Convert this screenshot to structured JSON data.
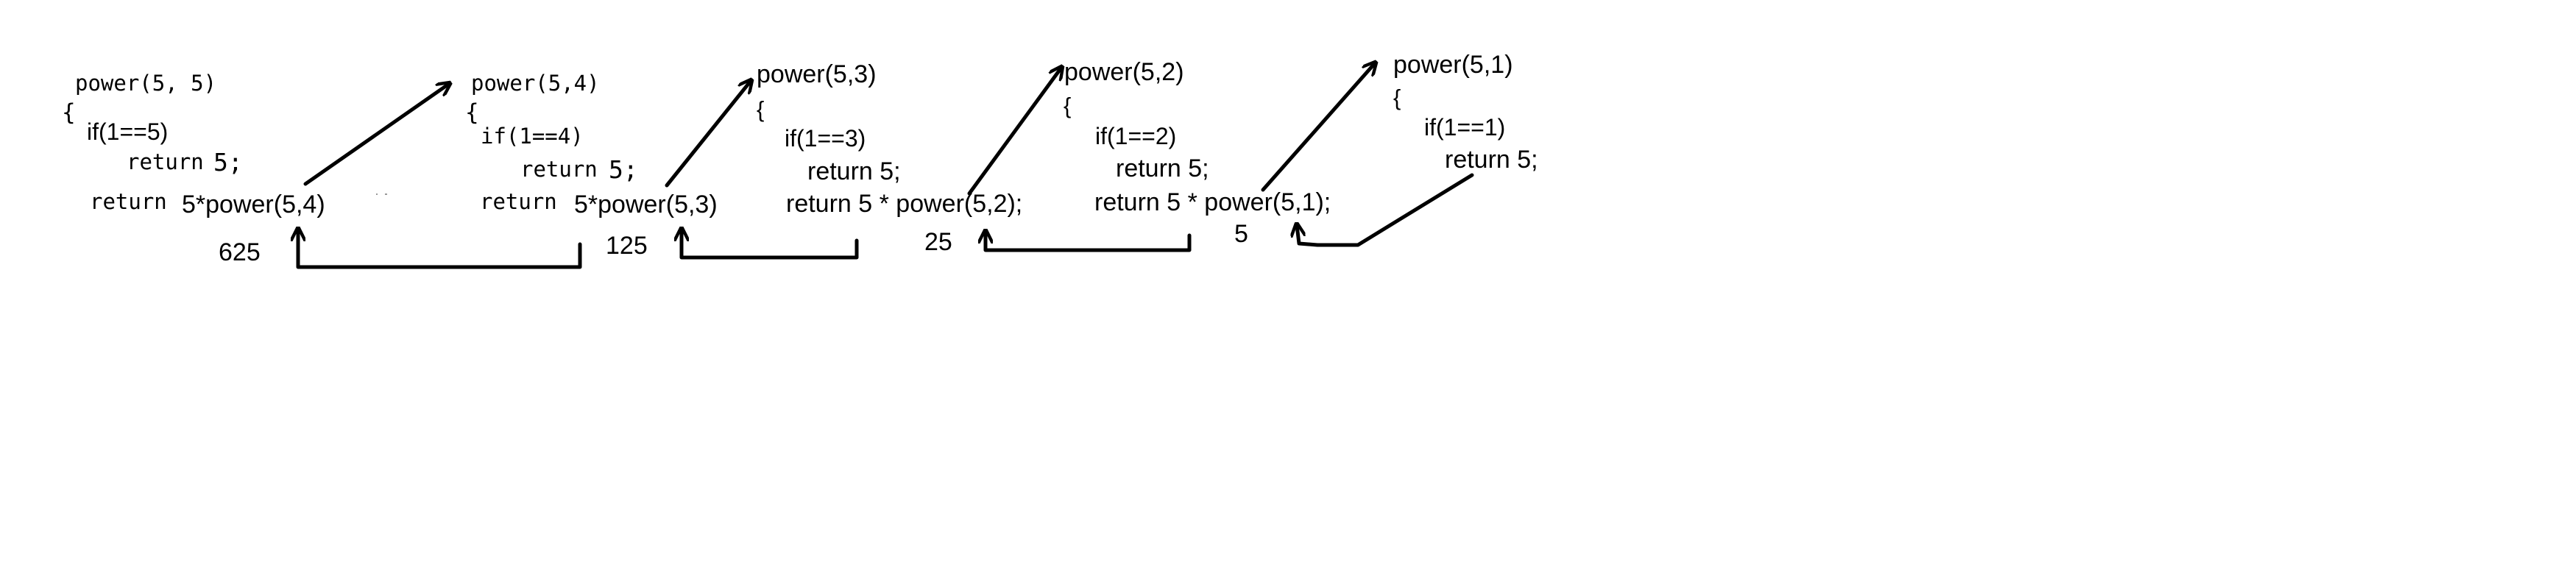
{
  "frames": [
    {
      "call": "power(5, 5)",
      "open_brace": "{",
      "if_line": "if(1==5)",
      "return_base_kw": "return",
      "return_base_val": "5;",
      "return_rec_kw": "return",
      "return_rec_expr": "5*power(5,4)",
      "result": "625"
    },
    {
      "call": "power(5,4)",
      "open_brace": "{",
      "if_line": "if(1==4)",
      "return_base_kw": "return",
      "return_base_val": "5;",
      "return_rec_kw": "return",
      "return_rec_expr": "5*power(5,3)",
      "result": "125"
    },
    {
      "call": "power(5,3)",
      "open_brace": "{",
      "if_line": "if(1==3)",
      "return_base": "return 5;",
      "return_rec": "return 5 * power(5,2);",
      "result": "25"
    },
    {
      "call": "power(5,2)",
      "open_brace": "{",
      "if_line": "if(1==2)",
      "return_base": "return 5;",
      "return_rec": "return 5 * power(5,1);",
      "result": "5"
    },
    {
      "call": "power(5,1)",
      "open_brace": "{",
      "if_line": "if(1==1)",
      "return_base": "return 5;"
    }
  ],
  "colors": {
    "ink": "#000000",
    "background": "#ffffff"
  }
}
